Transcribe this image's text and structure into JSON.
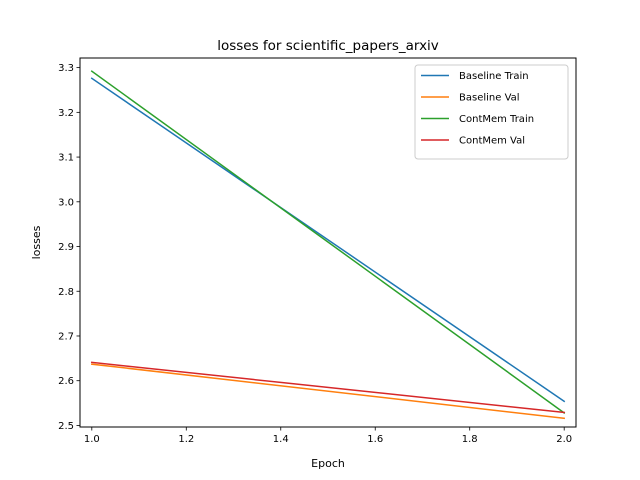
{
  "chart_data": {
    "type": "line",
    "title": "losses for scientific_papers_arxiv",
    "xlabel": "Epoch",
    "ylabel": "losses",
    "xlim": [
      0.975,
      2.025
    ],
    "ylim": [
      2.4965,
      3.3215
    ],
    "xticks": [
      1.0,
      1.2,
      1.4,
      1.6,
      1.8,
      2.0
    ],
    "xtick_labels": [
      "1.0",
      "1.2",
      "1.4",
      "1.6",
      "1.8",
      "2.0"
    ],
    "yticks": [
      2.5,
      2.6,
      2.7,
      2.8,
      2.9,
      3.0,
      3.1,
      3.2,
      3.3
    ],
    "ytick_labels": [
      "2.5",
      "2.6",
      "2.7",
      "2.8",
      "2.9",
      "3.0",
      "3.1",
      "3.2",
      "3.3"
    ],
    "grid": false,
    "legend_position": "top-right",
    "x": [
      1.0,
      2.0
    ],
    "series": [
      {
        "name": "Baseline Train",
        "color": "#1f77b4",
        "values": [
          3.276,
          2.554
        ]
      },
      {
        "name": "Baseline Val",
        "color": "#ff7f0e",
        "values": [
          2.637,
          2.516
        ]
      },
      {
        "name": "ContMem Train",
        "color": "#2ca02c",
        "values": [
          3.292,
          2.528
        ]
      },
      {
        "name": "ContMem Val",
        "color": "#d62728",
        "values": [
          2.641,
          2.529
        ]
      }
    ]
  }
}
